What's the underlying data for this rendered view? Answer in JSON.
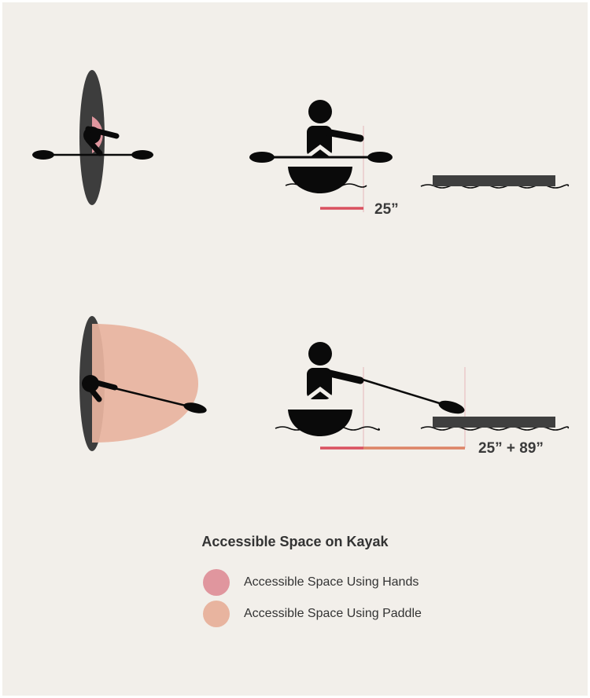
{
  "colors": {
    "background": "#f2efea",
    "figure": "#0a0a0a",
    "kayak_top": "#3d3d3d",
    "dock": "#3f3f3f",
    "hands_space": "#e0969e",
    "paddle_space": "#e8b49f",
    "hands_measure": "#d9515f",
    "paddle_measure": "#dd8466",
    "guide_line": "#e7b7bb"
  },
  "scenarios": [
    {
      "id": "hands",
      "measurement_label": "25”"
    },
    {
      "id": "paddle",
      "measurement_label": "25” + 89”"
    }
  ],
  "legend": {
    "title": "Accessible Space on Kayak",
    "items": [
      {
        "label": "Accessible Space Using Hands",
        "color": "#e0969e"
      },
      {
        "label": "Accessible Space Using Paddle",
        "color": "#e8b49f"
      }
    ]
  }
}
